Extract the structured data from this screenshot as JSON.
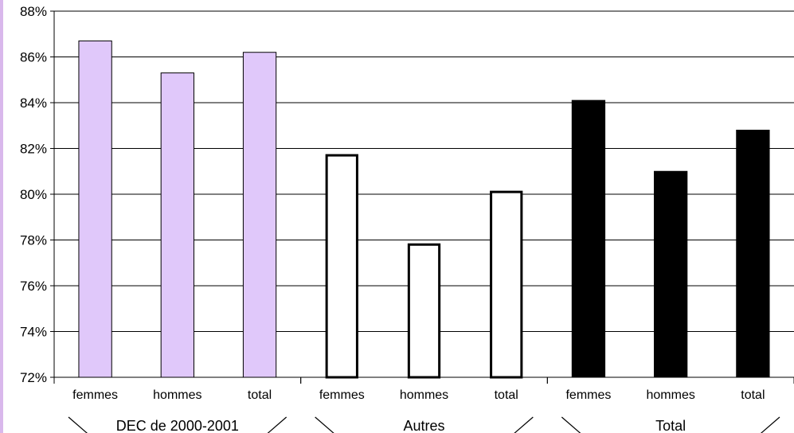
{
  "chart_data": {
    "type": "bar",
    "groups": [
      {
        "label": "DEC de 2000-2001",
        "style": "lavender"
      },
      {
        "label": "Autres",
        "style": "outline"
      },
      {
        "label": "Total",
        "style": "black"
      }
    ],
    "categories": [
      "femmes",
      "hommes",
      "total"
    ],
    "series": [
      {
        "group": "DEC de 2000-2001",
        "values": [
          86.7,
          85.3,
          86.2
        ]
      },
      {
        "group": "Autres",
        "values": [
          81.7,
          77.8,
          80.1
        ]
      },
      {
        "group": "Total",
        "values": [
          84.1,
          81.0,
          82.8
        ]
      }
    ],
    "ylim": [
      72,
      88
    ],
    "yticks": [
      "72%",
      "74%",
      "76%",
      "78%",
      "80%",
      "82%",
      "84%",
      "86%",
      "88%"
    ],
    "grid": true,
    "colors": {
      "lavender": "#e0c8fa",
      "outline": "#ffffff",
      "black": "#000000"
    }
  }
}
